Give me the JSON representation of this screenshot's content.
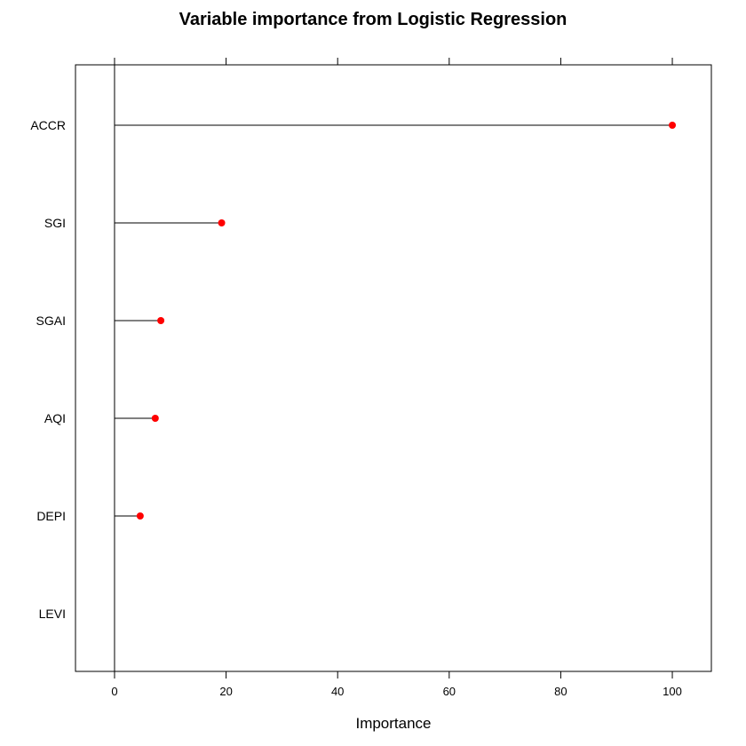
{
  "chart_data": {
    "type": "dotplot",
    "title": "Variable importance from Logistic Regression",
    "xlabel": "Importance",
    "ylabel": "",
    "categories": [
      "ACCR",
      "SGI",
      "SGAI",
      "AQI",
      "DEPI",
      "LEVI"
    ],
    "values": [
      100,
      19.2,
      8.3,
      7.3,
      4.6,
      0
    ],
    "xlim": [
      -7,
      107
    ],
    "xticks": [
      0,
      20,
      40,
      60,
      80,
      100
    ],
    "xtick_labels": [
      "0",
      "20",
      "40",
      "60",
      "80",
      "100"
    ],
    "marker_color": "#ff0000",
    "line_color": "#000000",
    "grid": false,
    "legend": "none"
  }
}
